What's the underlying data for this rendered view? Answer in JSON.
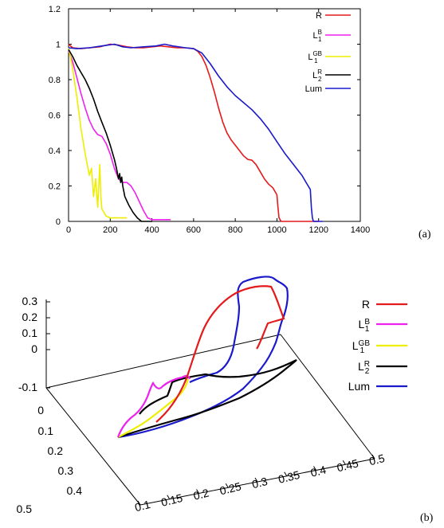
{
  "chart_data": [
    {
      "type": "line",
      "panel_label": "(a)",
      "xlim": [
        0,
        1400
      ],
      "ylim": [
        0,
        1.2
      ],
      "x_ticks": [
        "0",
        "200",
        "400",
        "600",
        "800",
        "1000",
        "1200",
        "1400"
      ],
      "y_ticks": [
        "0",
        "0.2",
        "0.4",
        "0.6",
        "0.8",
        "1",
        "1.2"
      ],
      "legend_position": "top-right",
      "series": [
        {
          "name": "R",
          "sub": "",
          "sup": "",
          "color": "#e41a1c",
          "points": [
            [
              0,
              1.0
            ],
            [
              20,
              0.98
            ],
            [
              60,
              0.975
            ],
            [
              100,
              0.98
            ],
            [
              150,
              0.985
            ],
            [
              200,
              1.0
            ],
            [
              240,
              0.995
            ],
            [
              280,
              0.985
            ],
            [
              320,
              0.98
            ],
            [
              360,
              0.98
            ],
            [
              400,
              0.985
            ],
            [
              440,
              0.99
            ],
            [
              480,
              0.985
            ],
            [
              520,
              0.98
            ],
            [
              560,
              0.98
            ],
            [
              600,
              0.975
            ],
            [
              620,
              0.96
            ],
            [
              640,
              0.93
            ],
            [
              660,
              0.88
            ],
            [
              680,
              0.81
            ],
            [
              700,
              0.73
            ],
            [
              720,
              0.64
            ],
            [
              740,
              0.56
            ],
            [
              760,
              0.5
            ],
            [
              780,
              0.46
            ],
            [
              800,
              0.43
            ],
            [
              820,
              0.4
            ],
            [
              840,
              0.37
            ],
            [
              860,
              0.35
            ],
            [
              880,
              0.345
            ],
            [
              900,
              0.32
            ],
            [
              920,
              0.28
            ],
            [
              940,
              0.24
            ],
            [
              960,
              0.21
            ],
            [
              980,
              0.19
            ],
            [
              1000,
              0.15
            ],
            [
              1005,
              0.08
            ],
            [
              1010,
              0.02
            ],
            [
              1020,
              0.0
            ],
            [
              1100,
              0.0
            ],
            [
              1200,
              0.0
            ]
          ]
        },
        {
          "name": "L",
          "sub": "1",
          "sup": "B",
          "color": "#ee22ee",
          "points": [
            [
              0,
              0.96
            ],
            [
              20,
              0.9
            ],
            [
              40,
              0.81
            ],
            [
              60,
              0.72
            ],
            [
              80,
              0.64
            ],
            [
              100,
              0.57
            ],
            [
              120,
              0.52
            ],
            [
              140,
              0.49
            ],
            [
              160,
              0.48
            ],
            [
              180,
              0.44
            ],
            [
              200,
              0.38
            ],
            [
              220,
              0.3
            ],
            [
              240,
              0.24
            ],
            [
              260,
              0.22
            ],
            [
              280,
              0.22
            ],
            [
              300,
              0.2
            ],
            [
              320,
              0.16
            ],
            [
              340,
              0.11
            ],
            [
              360,
              0.06
            ],
            [
              380,
              0.02
            ],
            [
              400,
              0.01
            ],
            [
              490,
              0.01
            ]
          ]
        },
        {
          "name": "L",
          "sub": "1",
          "sup": "GB",
          "color": "#eeee00",
          "points": [
            [
              0,
              0.98
            ],
            [
              20,
              0.86
            ],
            [
              40,
              0.7
            ],
            [
              60,
              0.52
            ],
            [
              80,
              0.38
            ],
            [
              100,
              0.26
            ],
            [
              110,
              0.3
            ],
            [
              120,
              0.14
            ],
            [
              130,
              0.24
            ],
            [
              140,
              0.08
            ],
            [
              150,
              0.32
            ],
            [
              155,
              0.14
            ],
            [
              160,
              0.07
            ],
            [
              180,
              0.03
            ],
            [
              200,
              0.02
            ],
            [
              280,
              0.02
            ]
          ]
        },
        {
          "name": "L",
          "sub": "2",
          "sup": "R",
          "color": "#000000",
          "points": [
            [
              0,
              0.97
            ],
            [
              20,
              0.93
            ],
            [
              40,
              0.88
            ],
            [
              60,
              0.84
            ],
            [
              80,
              0.8
            ],
            [
              100,
              0.75
            ],
            [
              120,
              0.69
            ],
            [
              140,
              0.62
            ],
            [
              160,
              0.56
            ],
            [
              180,
              0.5
            ],
            [
              200,
              0.43
            ],
            [
              220,
              0.35
            ],
            [
              230,
              0.3
            ],
            [
              240,
              0.24
            ],
            [
              245,
              0.27
            ],
            [
              250,
              0.22
            ],
            [
              255,
              0.25
            ],
            [
              260,
              0.2
            ],
            [
              270,
              0.14
            ],
            [
              290,
              0.09
            ],
            [
              310,
              0.05
            ],
            [
              330,
              0.02
            ],
            [
              350,
              0.0
            ],
            [
              400,
              0.0
            ]
          ]
        },
        {
          "name": "Lum",
          "sub": "",
          "sup": "",
          "color": "#1a1acc",
          "points": [
            [
              0,
              0.98
            ],
            [
              40,
              0.975
            ],
            [
              100,
              0.98
            ],
            [
              160,
              0.99
            ],
            [
              220,
              1.0
            ],
            [
              260,
              0.985
            ],
            [
              300,
              0.98
            ],
            [
              360,
              0.985
            ],
            [
              420,
              0.99
            ],
            [
              460,
              1.0
            ],
            [
              500,
              0.99
            ],
            [
              560,
              0.98
            ],
            [
              600,
              0.975
            ],
            [
              640,
              0.95
            ],
            [
              680,
              0.89
            ],
            [
              720,
              0.82
            ],
            [
              760,
              0.76
            ],
            [
              800,
              0.71
            ],
            [
              840,
              0.67
            ],
            [
              880,
              0.63
            ],
            [
              920,
              0.58
            ],
            [
              960,
              0.52
            ],
            [
              1000,
              0.45
            ],
            [
              1040,
              0.38
            ],
            [
              1080,
              0.32
            ],
            [
              1120,
              0.26
            ],
            [
              1140,
              0.22
            ],
            [
              1160,
              0.18
            ],
            [
              1165,
              0.08
            ],
            [
              1170,
              0.02
            ],
            [
              1175,
              0.0
            ],
            [
              1200,
              0.0
            ],
            [
              1220,
              0.0
            ]
          ]
        }
      ]
    },
    {
      "type": "line3d",
      "panel_label": "(b)",
      "z_ticks": [
        "0.3",
        "0.2",
        "0.1",
        "0",
        "-0.1"
      ],
      "y_ticks": [
        "0",
        "0.1",
        "0.2",
        "0.3",
        "0.4",
        "0.5"
      ],
      "x_ticks": [
        "0.1",
        "0.15",
        "0.2",
        "0.25",
        "0.3",
        "0.35",
        "0.4",
        "0.45",
        "0.5"
      ],
      "legend_position": "top-right",
      "legend": [
        {
          "name": "R",
          "sub": "",
          "sup": "",
          "color": "#e41a1c"
        },
        {
          "name": "L",
          "sub": "1",
          "sup": "B",
          "color": "#ee22ee"
        },
        {
          "name": "L",
          "sub": "1",
          "sup": "GB",
          "color": "#eeee00"
        },
        {
          "name": "L",
          "sub": "2",
          "sup": "R",
          "color": "#000000"
        },
        {
          "name": "Lum",
          "sub": "",
          "sup": "",
          "color": "#1a1acc"
        }
      ]
    }
  ]
}
